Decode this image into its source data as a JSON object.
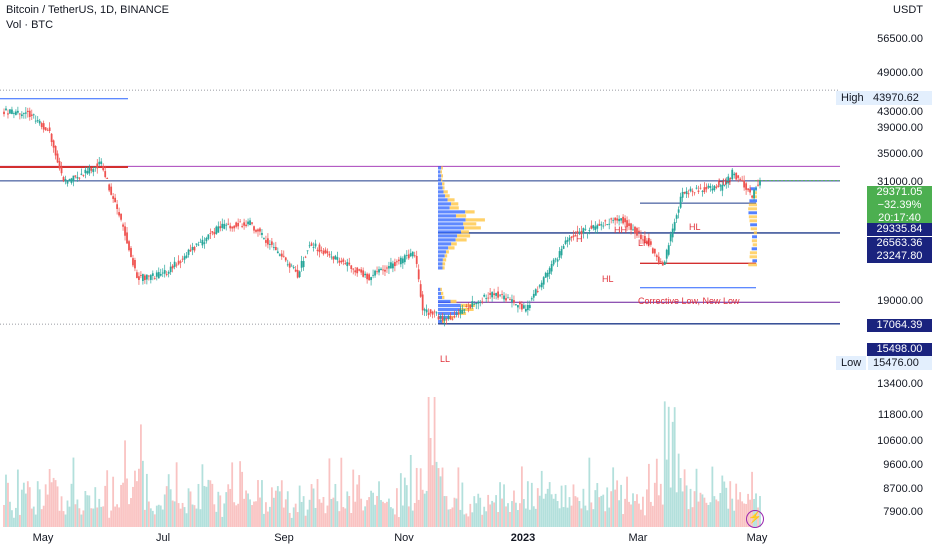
{
  "header": {
    "title": "Bitcoin / TetherUS, 1D, BINANCE",
    "volume_label": "Vol · BTC"
  },
  "price_axis": {
    "currency": "USDT",
    "ticks": [
      "56500.00",
      "49000.00",
      "43000.00",
      "39000.00",
      "35000.00",
      "31000.00",
      "19000.00",
      "13400.00"
    ],
    "volume_ticks": [
      "11800.00",
      "10600.00",
      "9600.00",
      "8700.00",
      "7900.00"
    ]
  },
  "tags": {
    "current_price": "29371.05",
    "change_percent": "−32.39%",
    "countdown": "20:17:40",
    "level_1": "29335.84",
    "level_2": "26563.36",
    "level_3": "23247.80",
    "level_4": "17064.39",
    "level_5": "15498.00",
    "high_label": "High",
    "high_value": "43970.62",
    "low_label": "Low",
    "low_value": "15476.00"
  },
  "time_axis": [
    "May",
    "Jul",
    "Sep",
    "Nov",
    "2023",
    "Mar",
    "May"
  ],
  "annotations": {
    "ll": "LL",
    "h": "H",
    "hh1": "HH",
    "lh": "LH",
    "hl1": "HL",
    "hl2": "HL",
    "hh2": "HH",
    "corrective": "Corrective Low, New Low"
  },
  "colors": {
    "up": "#26a69a",
    "down": "#ef5350",
    "level_blue": "#1e3a8a",
    "level_red": "#d32f2f",
    "profile_blue": "#2962ff",
    "profile_yellow": "#ffc94d",
    "price_tag_green": "#4caf50",
    "level_tag_navy": "#1a237e"
  },
  "chart_data": {
    "type": "candlestick",
    "title": "Bitcoin / TetherUS, 1D, BINANCE",
    "y_scale": "log",
    "ylim": [
      12500,
      64000
    ],
    "x_ticks": [
      "May",
      "Jul",
      "Sep",
      "Nov",
      "2023",
      "Mar",
      "May"
    ],
    "anchors": [
      {
        "date": "2022-04-12",
        "close": 40100
      },
      {
        "date": "2022-04-25",
        "close": 39500
      },
      {
        "date": "2022-05-05",
        "close": 36500
      },
      {
        "date": "2022-05-12",
        "close": 29000
      },
      {
        "date": "2022-05-31",
        "close": 31700
      },
      {
        "date": "2022-06-13",
        "close": 22500
      },
      {
        "date": "2022-06-18",
        "close": 19000
      },
      {
        "date": "2022-07-01",
        "close": 19300
      },
      {
        "date": "2022-07-29",
        "close": 23800
      },
      {
        "date": "2022-08-14",
        "close": 24300
      },
      {
        "date": "2022-09-07",
        "close": 19300
      },
      {
        "date": "2022-09-13",
        "close": 22200
      },
      {
        "date": "2022-10-13",
        "close": 19100
      },
      {
        "date": "2022-11-05",
        "close": 21300
      },
      {
        "date": "2022-11-09",
        "close": 16500
      },
      {
        "date": "2022-11-21",
        "close": 15800
      },
      {
        "date": "2022-12-14",
        "close": 17800
      },
      {
        "date": "2022-12-31",
        "close": 16550
      },
      {
        "date": "2023-01-22",
        "close": 22900
      },
      {
        "date": "2023-02-16",
        "close": 24900
      },
      {
        "date": "2023-03-02",
        "close": 22400
      },
      {
        "date": "2023-03-10",
        "close": 20000
      },
      {
        "date": "2023-03-20",
        "close": 28000
      },
      {
        "date": "2023-04-10",
        "close": 28500
      },
      {
        "date": "2023-04-14",
        "close": 30500
      },
      {
        "date": "2023-04-24",
        "close": 27500
      },
      {
        "date": "2023-04-28",
        "close": 29371
      }
    ],
    "levels": [
      {
        "value": 43970.62,
        "label": "High",
        "style": "dotted"
      },
      {
        "value": 29335.84
      },
      {
        "value": 26563.36
      },
      {
        "value": 23247.8
      },
      {
        "value": 17064.39
      },
      {
        "value": 15498.0
      },
      {
        "value": 15476.0,
        "label": "Low",
        "style": "dotted"
      }
    ],
    "volume_axis_ticks": [
      11800,
      10600,
      9600,
      8700,
      7900
    ]
  }
}
